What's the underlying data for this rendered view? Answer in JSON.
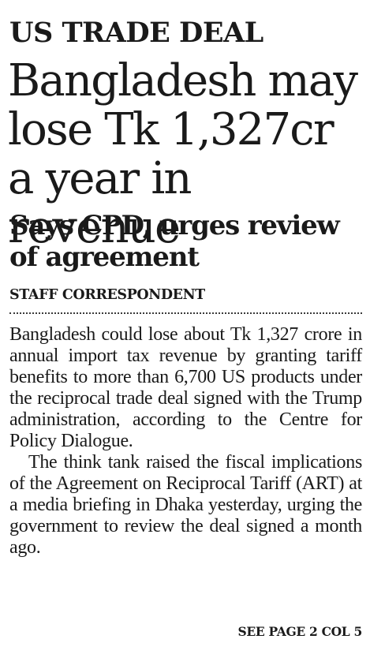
{
  "kicker": "US TRADE DEAL",
  "headline": "Bangladesh may lose Tk 1,327cr a year in revenue",
  "subheadline": "Says CPD, urges review of agreement",
  "byline": "STAFF CORRESPONDENT",
  "body": {
    "paragraphs": [
      "Bangladesh could lose about Tk 1,327 crore in annual import tax revenue by granting tariff benefits to more than 6,700 US products under the reciprocal trade deal signed with the Trump administration, according to the Centre for Policy Dialogue.",
      "The think tank raised the fiscal implications of the Agreement on Reciprocal Tariff (ART) at a media briefing in Dhaka yesterday, urging the government to review the deal signed a month ago."
    ]
  },
  "jump_line": "SEE PAGE 2 COL 5"
}
